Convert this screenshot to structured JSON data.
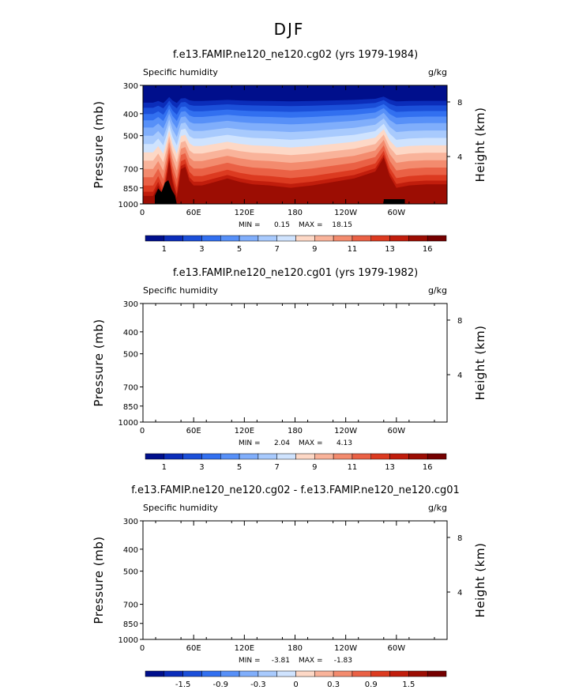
{
  "page_title": "DJF",
  "colorbar_colors": [
    "#000f8c",
    "#0b2dba",
    "#1b4fd9",
    "#3270f0",
    "#5790f8",
    "#80aefb",
    "#a8cafd",
    "#cfe3fe",
    "#fdd8c6",
    "#f9b39a",
    "#f38b6e",
    "#ea6145",
    "#dc3a20",
    "#c11d0c",
    "#9c0d03",
    "#750000"
  ],
  "chart_data": [
    {
      "type": "heatmap",
      "title": "f.e13.FAMIP.ne120_ne120.cg02 (yrs 1979-1984)",
      "left_label": "Specific humidity",
      "right_label": "g/kg",
      "ylabel": "Pressure (mb)",
      "ylabel_right": "Height (km)",
      "y_ticks": [
        "300",
        "400",
        "500",
        "700",
        "850",
        "1000"
      ],
      "y_right_ticks": [
        "8",
        "4"
      ],
      "x_ticks": [
        "0",
        "60E",
        "120E",
        "180",
        "120W",
        "60W"
      ],
      "stats": {
        "min_label": "MIN =",
        "min": "0.15",
        "max_label": "MAX =",
        "max": "18.15"
      },
      "colorbar_labels": [
        "1",
        "3",
        "5",
        "7",
        "9",
        "11",
        "13",
        "16"
      ],
      "filled": true,
      "surface_profile": [
        {
          "lon": 0,
          "depth": 0.95
        },
        {
          "lon": 12,
          "depth": 0.95
        },
        {
          "lon": 18,
          "depth": 0.86
        },
        {
          "lon": 24,
          "depth": 0.97
        },
        {
          "lon": 28,
          "depth": 0.8
        },
        {
          "lon": 31,
          "depth": 0.64
        },
        {
          "lon": 35,
          "depth": 0.83
        },
        {
          "lon": 40,
          "depth": 0.97
        },
        {
          "lon": 45,
          "depth": 0.72
        },
        {
          "lon": 50,
          "depth": 0.7
        },
        {
          "lon": 55,
          "depth": 0.82
        },
        {
          "lon": 60,
          "depth": 0.86
        },
        {
          "lon": 70,
          "depth": 0.86
        },
        {
          "lon": 85,
          "depth": 0.83
        },
        {
          "lon": 100,
          "depth": 0.8
        },
        {
          "lon": 115,
          "depth": 0.83
        },
        {
          "lon": 130,
          "depth": 0.85
        },
        {
          "lon": 150,
          "depth": 0.86
        },
        {
          "lon": 175,
          "depth": 0.88
        },
        {
          "lon": 200,
          "depth": 0.86
        },
        {
          "lon": 225,
          "depth": 0.83
        },
        {
          "lon": 250,
          "depth": 0.8
        },
        {
          "lon": 275,
          "depth": 0.74
        },
        {
          "lon": 285,
          "depth": 0.62
        },
        {
          "lon": 292,
          "depth": 0.78
        },
        {
          "lon": 300,
          "depth": 0.88
        },
        {
          "lon": 315,
          "depth": 0.86
        },
        {
          "lon": 335,
          "depth": 0.85
        },
        {
          "lon": 360,
          "depth": 0.85
        }
      ],
      "contour_offsets": [
        0.08,
        0.13,
        0.19,
        0.25,
        0.32,
        0.4,
        0.48,
        0.56,
        0.64,
        0.72,
        0.8,
        0.88,
        0.94,
        0.98
      ]
    },
    {
      "type": "heatmap",
      "title": "f.e13.FAMIP.ne120_ne120.cg01 (yrs 1979-1982)",
      "left_label": "Specific humidity",
      "right_label": "g/kg",
      "ylabel": "Pressure (mb)",
      "ylabel_right": "Height (km)",
      "y_ticks": [
        "300",
        "400",
        "500",
        "700",
        "850",
        "1000"
      ],
      "y_right_ticks": [
        "8",
        "4"
      ],
      "x_ticks": [
        "0",
        "60E",
        "120E",
        "180",
        "120W",
        "60W"
      ],
      "stats": {
        "min_label": "MIN =",
        "min": "2.04",
        "max_label": "MAX =",
        "max": "4.13"
      },
      "colorbar_labels": [
        "1",
        "3",
        "5",
        "7",
        "9",
        "11",
        "13",
        "16"
      ],
      "filled": false
    },
    {
      "type": "heatmap",
      "title": "f.e13.FAMIP.ne120_ne120.cg02 - f.e13.FAMIP.ne120_ne120.cg01",
      "left_label": "Specific humidity",
      "right_label": "g/kg",
      "ylabel": "Pressure (mb)",
      "ylabel_right": "Height (km)",
      "y_ticks": [
        "300",
        "400",
        "500",
        "700",
        "850",
        "1000"
      ],
      "y_right_ticks": [
        "8",
        "4"
      ],
      "x_ticks": [
        "0",
        "60E",
        "120E",
        "180",
        "120W",
        "60W"
      ],
      "stats": {
        "min_label": "MIN =",
        "min": "-3.81",
        "max_label": "MAX =",
        "max": "-1.83"
      },
      "colorbar_labels": [
        "-1.5",
        "-0.9",
        "-0.3",
        "0",
        "0.3",
        "0.9",
        "1.5"
      ],
      "filled": false
    }
  ]
}
